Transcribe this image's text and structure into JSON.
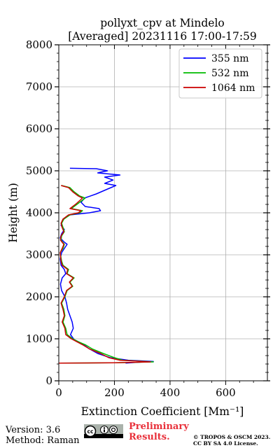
{
  "chart_data": {
    "type": "line",
    "title": "pollyxt_cpv at Mindelo",
    "subtitle": "[Averaged] 20231116 17:00-17:59",
    "xlabel": "Extinction Coefficient [Mm⁻¹]",
    "ylabel": "Height (m)",
    "xlim": [
      0,
      750
    ],
    "ylim": [
      0,
      8000
    ],
    "xticks": [
      0,
      200,
      400,
      600
    ],
    "yticks": [
      0,
      1000,
      2000,
      3000,
      4000,
      5000,
      6000,
      7000,
      8000
    ],
    "grid": true,
    "legend_position": "top-right",
    "series": [
      {
        "name": "355 nm",
        "color": "#0000ff",
        "points": [
          [
            240,
            420
          ],
          [
            280,
            440
          ],
          [
            340,
            460
          ],
          [
            250,
            490
          ],
          [
            185,
            550
          ],
          [
            140,
            650
          ],
          [
            110,
            760
          ],
          [
            85,
            880
          ],
          [
            55,
            980
          ],
          [
            42,
            1100
          ],
          [
            52,
            1250
          ],
          [
            48,
            1400
          ],
          [
            40,
            1550
          ],
          [
            32,
            1700
          ],
          [
            28,
            1850
          ],
          [
            22,
            2000
          ],
          [
            10,
            2150
          ],
          [
            6,
            2300
          ],
          [
            12,
            2450
          ],
          [
            25,
            2550
          ],
          [
            20,
            2650
          ],
          [
            8,
            2750
          ],
          [
            5,
            2900
          ],
          [
            10,
            3050
          ],
          [
            20,
            3150
          ],
          [
            30,
            3250
          ],
          [
            20,
            3300
          ],
          [
            5,
            3400
          ],
          [
            10,
            3500
          ],
          [
            20,
            3600
          ],
          [
            8,
            3700
          ],
          [
            15,
            3850
          ],
          [
            40,
            3950
          ],
          [
            110,
            4000
          ],
          [
            150,
            4050
          ],
          [
            145,
            4100
          ],
          [
            95,
            4150
          ],
          [
            80,
            4250
          ],
          [
            92,
            4350
          ],
          [
            135,
            4450
          ],
          [
            170,
            4550
          ],
          [
            205,
            4650
          ],
          [
            165,
            4700
          ],
          [
            195,
            4780
          ],
          [
            165,
            4850
          ],
          [
            220,
            4900
          ],
          [
            140,
            4950
          ],
          [
            175,
            5000
          ],
          [
            135,
            5050
          ],
          [
            40,
            5060
          ]
        ]
      },
      {
        "name": "532 nm",
        "color": "#00bb00",
        "points": [
          [
            0,
            420
          ],
          [
            200,
            430
          ],
          [
            340,
            450
          ],
          [
            230,
            490
          ],
          [
            200,
            550
          ],
          [
            160,
            650
          ],
          [
            120,
            760
          ],
          [
            95,
            860
          ],
          [
            70,
            930
          ],
          [
            50,
            1000
          ],
          [
            30,
            1100
          ],
          [
            25,
            1250
          ],
          [
            15,
            1400
          ],
          [
            22,
            1550
          ],
          [
            18,
            1700
          ],
          [
            10,
            1850
          ],
          [
            22,
            2000
          ],
          [
            30,
            2150
          ],
          [
            50,
            2250
          ],
          [
            40,
            2350
          ],
          [
            55,
            2450
          ],
          [
            30,
            2550
          ],
          [
            35,
            2650
          ],
          [
            15,
            2750
          ],
          [
            10,
            2850
          ],
          [
            5,
            3050
          ],
          [
            15,
            3150
          ],
          [
            20,
            3250
          ],
          [
            8,
            3350
          ],
          [
            10,
            3450
          ],
          [
            20,
            3550
          ],
          [
            15,
            3650
          ],
          [
            10,
            3750
          ],
          [
            18,
            3850
          ],
          [
            40,
            3950
          ],
          [
            75,
            4000
          ],
          [
            85,
            4050
          ],
          [
            45,
            4100
          ],
          [
            65,
            4200
          ],
          [
            95,
            4350
          ],
          [
            75,
            4400
          ],
          [
            55,
            4500
          ],
          [
            40,
            4600
          ],
          [
            10,
            4650
          ]
        ]
      },
      {
        "name": "1064 nm",
        "color": "#cc0000",
        "points": [
          [
            0,
            420
          ],
          [
            200,
            430
          ],
          [
            330,
            450
          ],
          [
            220,
            490
          ],
          [
            180,
            550
          ],
          [
            150,
            650
          ],
          [
            110,
            760
          ],
          [
            85,
            860
          ],
          [
            65,
            930
          ],
          [
            45,
            1000
          ],
          [
            25,
            1100
          ],
          [
            22,
            1250
          ],
          [
            12,
            1400
          ],
          [
            20,
            1550
          ],
          [
            15,
            1700
          ],
          [
            8,
            1850
          ],
          [
            20,
            2000
          ],
          [
            28,
            2150
          ],
          [
            48,
            2250
          ],
          [
            38,
            2350
          ],
          [
            52,
            2450
          ],
          [
            28,
            2550
          ],
          [
            32,
            2650
          ],
          [
            12,
            2750
          ],
          [
            8,
            2850
          ],
          [
            5,
            3050
          ],
          [
            12,
            3150
          ],
          [
            18,
            3250
          ],
          [
            6,
            3350
          ],
          [
            8,
            3450
          ],
          [
            18,
            3550
          ],
          [
            12,
            3650
          ],
          [
            8,
            3750
          ],
          [
            15,
            3850
          ],
          [
            35,
            3950
          ],
          [
            70,
            4000
          ],
          [
            80,
            4050
          ],
          [
            40,
            4100
          ],
          [
            60,
            4200
          ],
          [
            85,
            4350
          ],
          [
            70,
            4400
          ],
          [
            50,
            4500
          ],
          [
            35,
            4600
          ],
          [
            8,
            4650
          ]
        ]
      }
    ]
  },
  "footer": {
    "version": "Version: 3.6",
    "method": "Method: Raman",
    "license_badge": "cc-by-sa-badge",
    "preliminary_line1": "Preliminary",
    "preliminary_line2": "Results.",
    "copyright_line1": "© TROPOS & OSCM 2023.",
    "copyright_line2": "CC BY SA 4.0 License."
  }
}
